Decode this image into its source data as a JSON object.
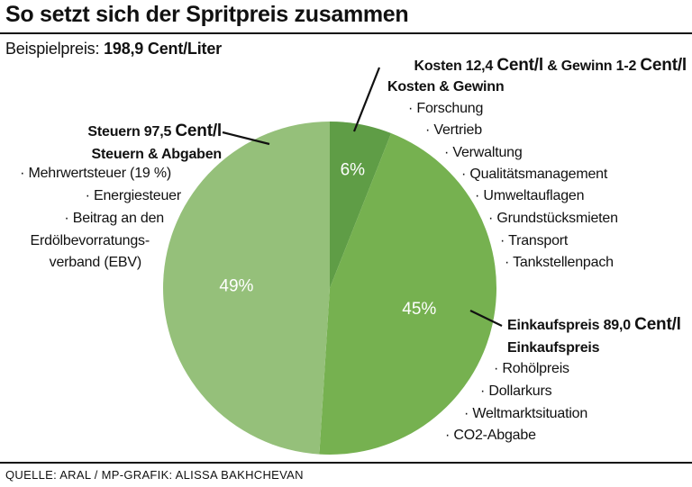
{
  "title": "So setzt sich der Spritpreis zusammen",
  "subtitle": {
    "label": "Beispielpreis:",
    "value": "198,9 Cent/Liter"
  },
  "source": "QUELLE: ARAL / MP-GRAFIK: ALISSA BAKHCHEVAN",
  "colors": {
    "kosten": "#5f9d46",
    "einkauf": "#76b150",
    "steuern": "#95c07a"
  },
  "chart_data": {
    "type": "pie",
    "title": "So setzt sich der Spritpreis zusammen",
    "categories": [
      "Kosten & Gewinn",
      "Einkaufspreis",
      "Steuern & Abgaben"
    ],
    "values": [
      6,
      45,
      49
    ],
    "labels": [
      "6%",
      "45%",
      "49%"
    ],
    "amounts": [
      "12,4",
      "89,0",
      "97,5"
    ]
  },
  "annotations": {
    "kosten": {
      "line1_a": "Kosten 12,4 ",
      "line1_b": "Cent/l",
      "line1_c": " & Gewinn 1-2 ",
      "line1_d": "Cent/l",
      "line2": "Kosten & Gewinn",
      "items": [
        "· Forschung",
        "· Vertrieb",
        "· Verwaltung",
        "· Qualitätsmanagement",
        "· Umweltauflagen",
        "· Grundstücksmieten",
        "· Transport",
        "· Tankstellenpach"
      ]
    },
    "einkauf": {
      "line1_a": "Einkaufspreis 89,0 ",
      "line1_b": "Cent/l",
      "line2": "Einkaufspreis",
      "items": [
        "· Rohölpreis",
        "· Dollarkurs",
        "· Weltmarktsituation",
        "· CO2-Abgabe"
      ]
    },
    "steuern": {
      "line1_a": "Steuern 97,5 ",
      "line1_b": "Cent/l",
      "line2": "Steuern & Abgaben",
      "items": [
        "· Mehrwertsteuer (19 %)",
        "· Energiesteuer",
        "· Beitrag an den",
        "Erdölbevorratungs-",
        "verband (EBV)"
      ]
    }
  }
}
